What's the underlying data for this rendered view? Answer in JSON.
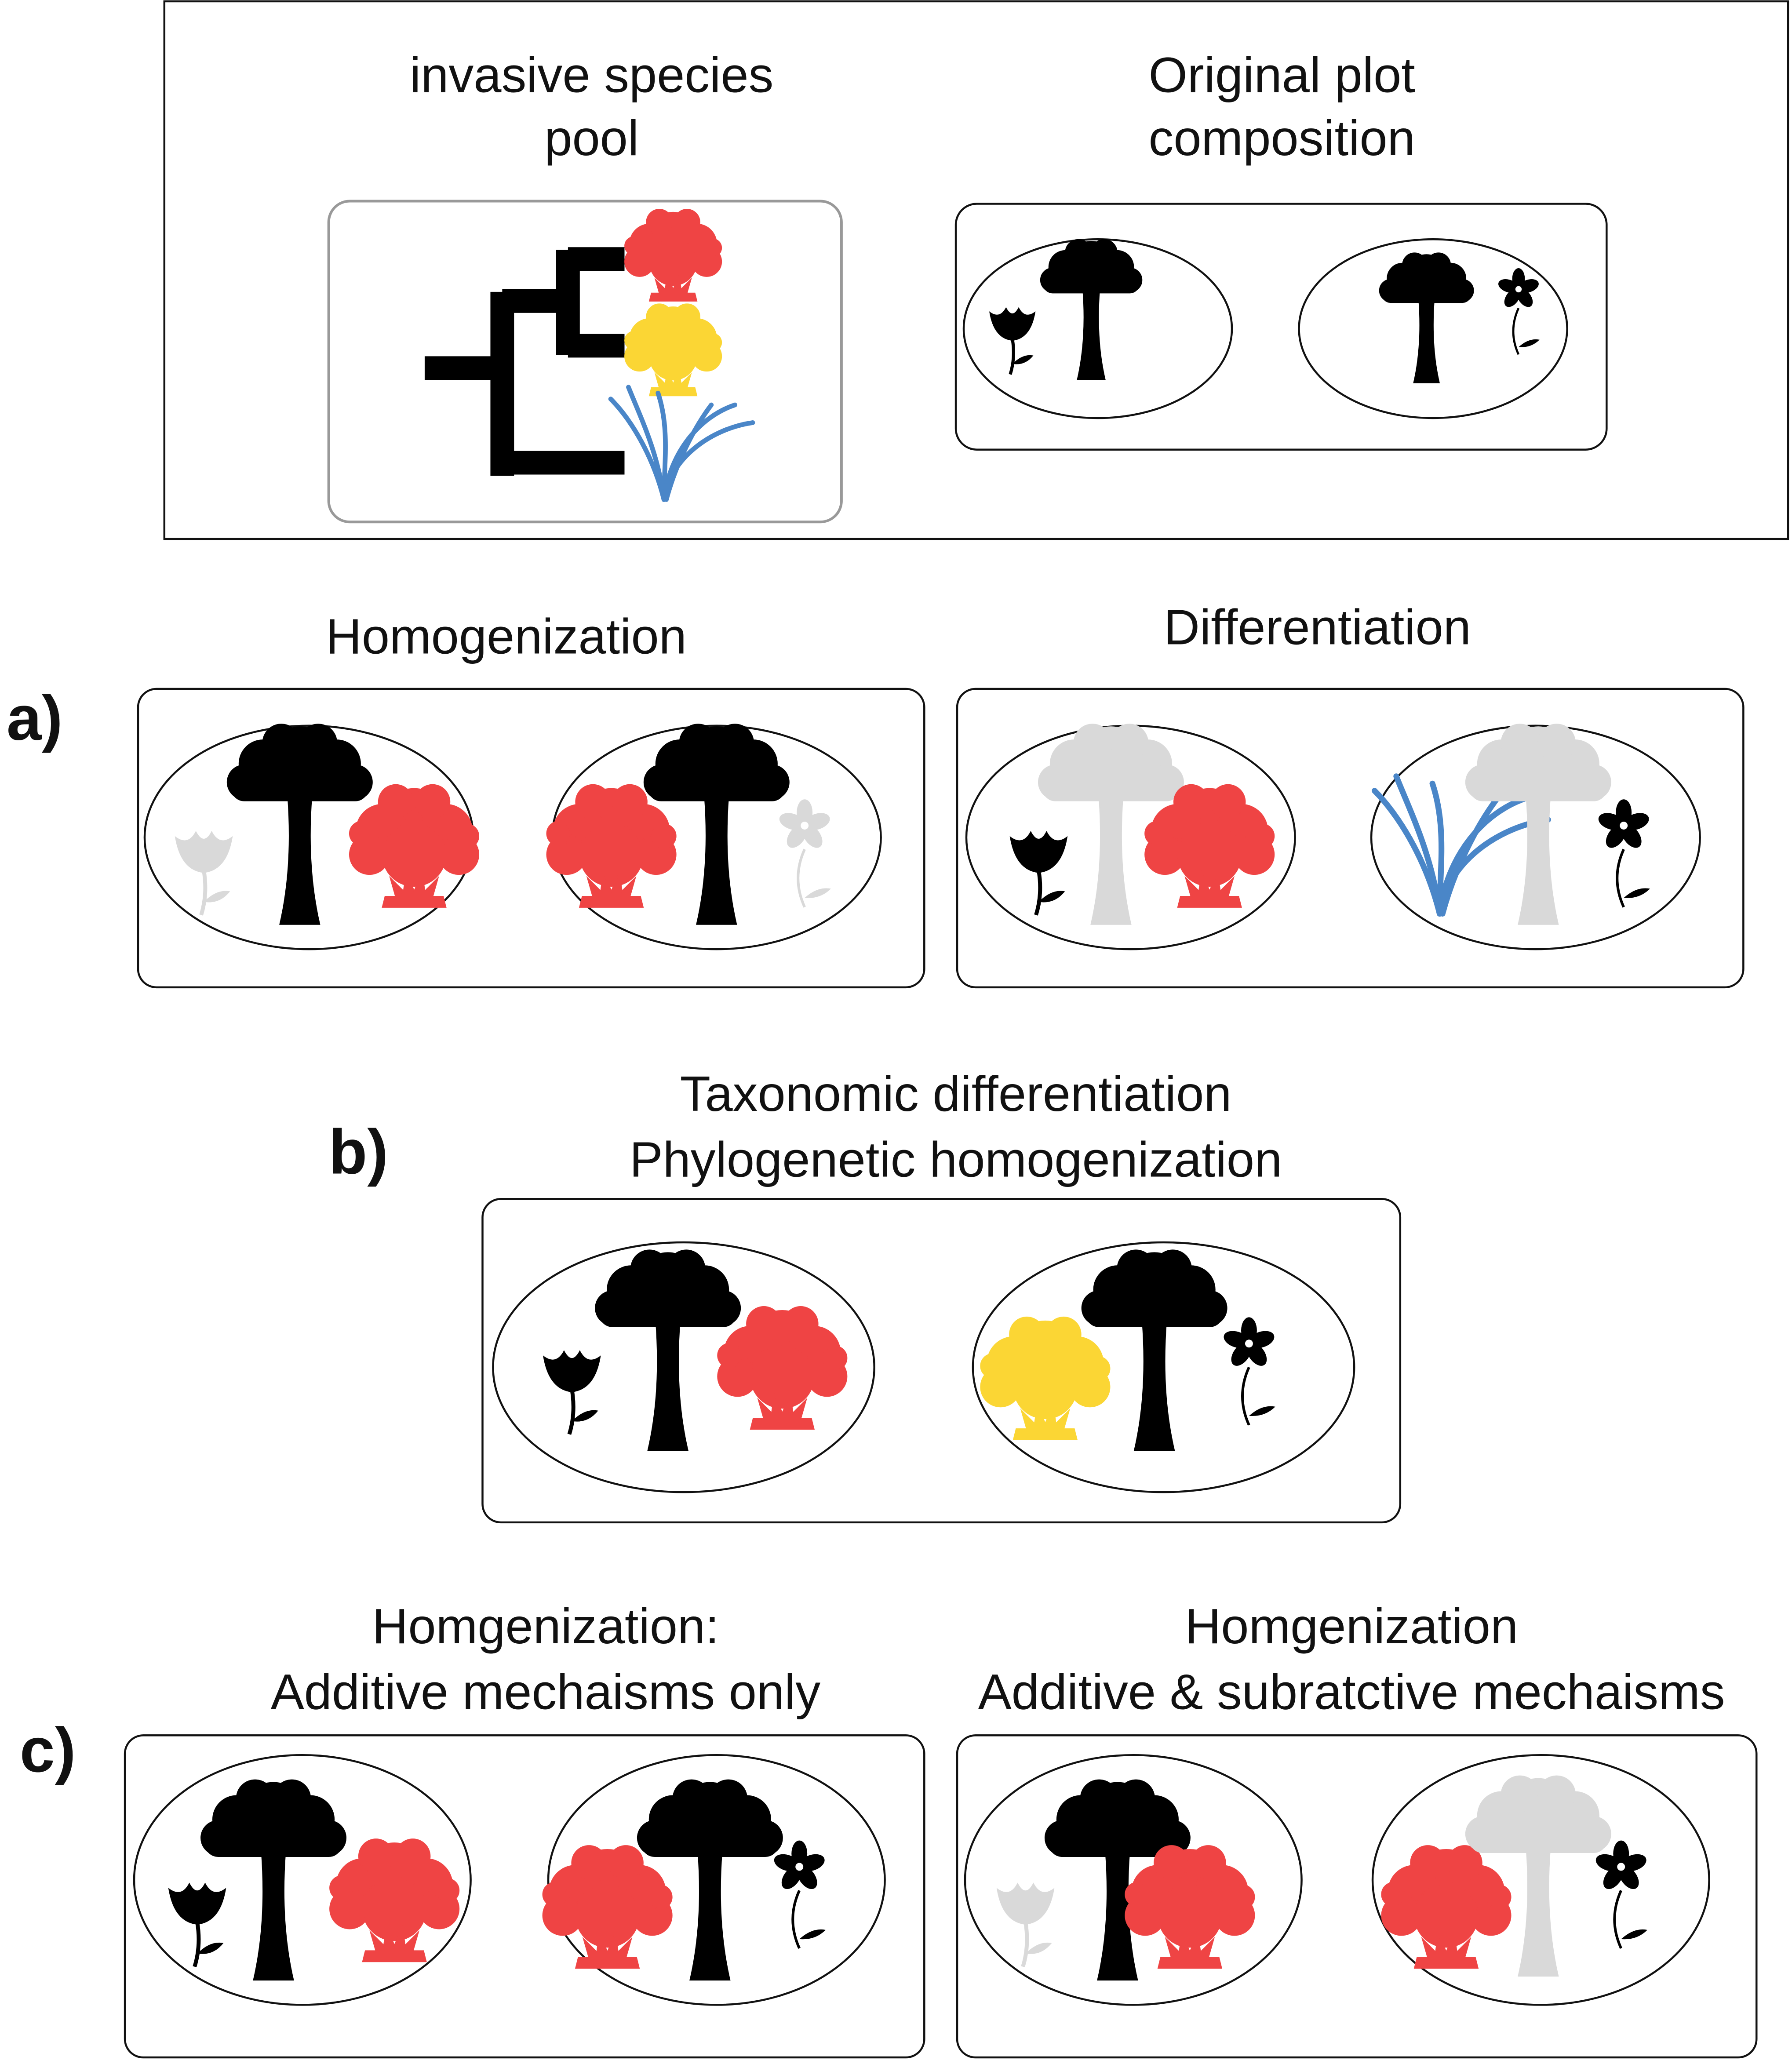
{
  "pool": {
    "title": [
      "invasive species",
      "pool"
    ]
  },
  "original": {
    "title": [
      "Original plot",
      "composition"
    ]
  },
  "panel_a": {
    "label": "a)",
    "left": {
      "title": [
        "Homogenization"
      ]
    },
    "right": {
      "title": [
        "Differentiation"
      ]
    }
  },
  "panel_b": {
    "label": "b)",
    "title": [
      "Taxonomic differentiation",
      "Phylogenetic homogenization"
    ]
  },
  "panel_c": {
    "label": "c)",
    "left": {
      "title": [
        "Homgenization:",
        "Additive mechaisms only"
      ]
    },
    "right": {
      "title": [
        "Homgenization",
        "Additive & subratctive mechaisms"
      ]
    }
  }
}
